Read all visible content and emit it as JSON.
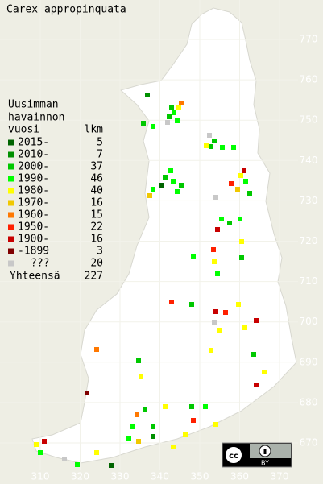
{
  "title": "Carex appropinquata",
  "legend": {
    "heading": [
      "Uusimman",
      "havainnon",
      "vuosi"
    ],
    "count_heading": "lkm",
    "rows": [
      {
        "label": "2015-",
        "count": 5,
        "color": "#006400"
      },
      {
        "label": "2010-",
        "count": 7,
        "color": "#009000"
      },
      {
        "label": "2000-",
        "count": 37,
        "color": "#00c800"
      },
      {
        "label": "1990-",
        "count": 46,
        "color": "#00ff00"
      },
      {
        "label": "1980-",
        "count": 40,
        "color": "#ffff00"
      },
      {
        "label": "1970-",
        "count": 16,
        "color": "#f0c800"
      },
      {
        "label": "1960-",
        "count": 15,
        "color": "#ff7800"
      },
      {
        "label": "1950-",
        "count": 22,
        "color": "#ff2000"
      },
      {
        "label": "1900-",
        "count": 16,
        "color": "#c80000"
      },
      {
        "label": "-1899",
        "count": 3,
        "color": "#800000"
      },
      {
        "label": "???",
        "count": 20,
        "color": "#c8c8c8"
      }
    ],
    "total_label": "Yhteensä",
    "total": 227
  },
  "map": {
    "xticks": [
      310,
      320,
      330,
      340,
      350,
      360,
      370
    ],
    "yticks": [
      670,
      680,
      690,
      700,
      710,
      720,
      730,
      740,
      750,
      760,
      770
    ]
  },
  "license": {
    "badge": "BY"
  }
}
